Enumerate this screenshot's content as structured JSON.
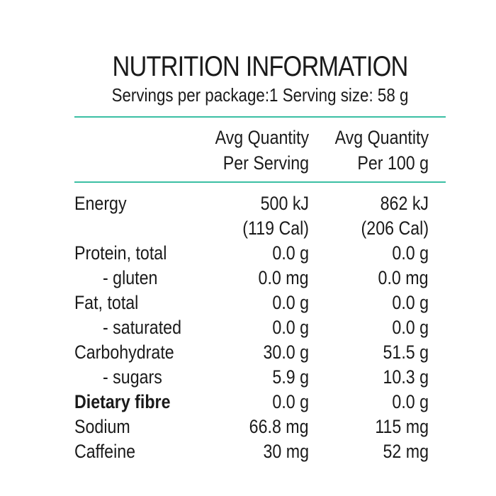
{
  "title": "NUTRITION INFORMATION",
  "serving_line": "Servings per package:1 Serving size: 58 g",
  "accent_color": "#3bbfa4",
  "headers": {
    "col1": [
      "Avg Quantity",
      "Per Serving"
    ],
    "col2": [
      "Avg Quantity",
      "Per 100 g"
    ]
  },
  "rows": [
    {
      "name": "Energy",
      "per_serving": [
        "500 kJ",
        "(119 Cal)"
      ],
      "per_100g": [
        "862 kJ",
        "(206 Cal)"
      ]
    },
    {
      "name": "Protein, total",
      "per_serving": "0.0 g",
      "per_100g": "0.0 g"
    },
    {
      "name": "- gluten",
      "per_serving": "0.0 mg",
      "per_100g": "0.0 mg"
    },
    {
      "name": "Fat, total",
      "per_serving": "0.0 g",
      "per_100g": "0.0 g"
    },
    {
      "name": "- saturated",
      "per_serving": "0.0 g",
      "per_100g": "0.0 g"
    },
    {
      "name": "Carbohydrate",
      "per_serving": "30.0 g",
      "per_100g": "51.5 g"
    },
    {
      "name": "- sugars",
      "per_serving": "5.9 g",
      "per_100g": "10.3 g"
    },
    {
      "name": "Dietary fibre",
      "per_serving": "0.0 g",
      "per_100g": "0.0 g"
    },
    {
      "name": "Sodium",
      "per_serving": "66.8 mg",
      "per_100g": "115 mg"
    },
    {
      "name": "Caffeine",
      "per_serving": "30 mg",
      "per_100g": "52 mg"
    }
  ]
}
